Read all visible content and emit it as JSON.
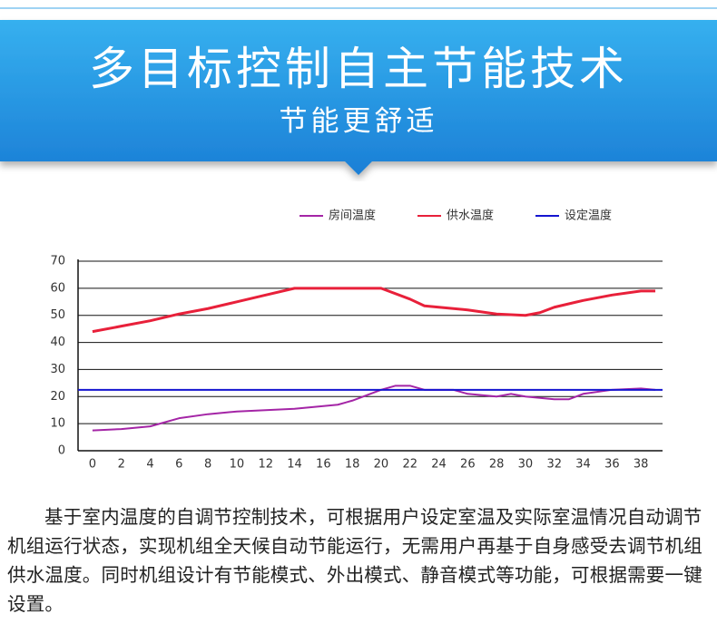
{
  "header": {
    "title": "多目标控制自主节能技术",
    "subtitle": "节能更舒适"
  },
  "chart_data": {
    "type": "line",
    "series": [
      {
        "name": "房间温度",
        "color": "#a425a6",
        "x": [
          0,
          2,
          3,
          4,
          6,
          8,
          10,
          12,
          14,
          16,
          17,
          18,
          20,
          21,
          22,
          23,
          24,
          25,
          26,
          28,
          29,
          30,
          32,
          33,
          34,
          36,
          38,
          39
        ],
        "values": [
          7.5,
          8,
          8.5,
          9,
          12,
          13.5,
          14.5,
          15,
          15.5,
          16.5,
          17,
          18.5,
          22.5,
          24,
          24,
          22.5,
          22.5,
          22.5,
          21,
          20,
          21,
          20,
          19,
          19,
          21,
          22.5,
          23,
          22.5
        ]
      },
      {
        "name": "供水温度",
        "color": "#e8203a",
        "x": [
          0,
          2,
          4,
          6,
          8,
          10,
          12,
          14,
          16,
          18,
          20,
          22,
          23,
          24,
          26,
          28,
          30,
          31,
          32,
          34,
          36,
          38,
          39
        ],
        "values": [
          44,
          46,
          48,
          50.5,
          52.5,
          55,
          57.5,
          60,
          60,
          60,
          60,
          56,
          53.5,
          53,
          52,
          50.5,
          50,
          51,
          53,
          55.5,
          57.5,
          59,
          59
        ]
      },
      {
        "name": "设定温度",
        "color": "#1515d0",
        "x": [
          -1,
          39.5
        ],
        "values": [
          22.5,
          22.5
        ]
      }
    ],
    "xlim": [
      -1,
      39.5
    ],
    "ylim": [
      0,
      70
    ],
    "xticks": [
      0,
      2,
      4,
      6,
      8,
      10,
      12,
      14,
      16,
      18,
      20,
      22,
      24,
      26,
      28,
      30,
      32,
      34,
      36,
      38
    ],
    "yticks": [
      0,
      10,
      20,
      30,
      40,
      50,
      60,
      70
    ],
    "grid": true,
    "legend": "top"
  },
  "body": {
    "text": "基于室内温度的自调节控制技术，可根据用户设定室温及实际室温情况自动调节机组运行状态，实现机组全天候自动节能运行，无需用户再基于自身感受去调节机组供水温度。同时机组设计有节能模式、外出模式、静音模式等功能，可根据需要一键设置。"
  }
}
